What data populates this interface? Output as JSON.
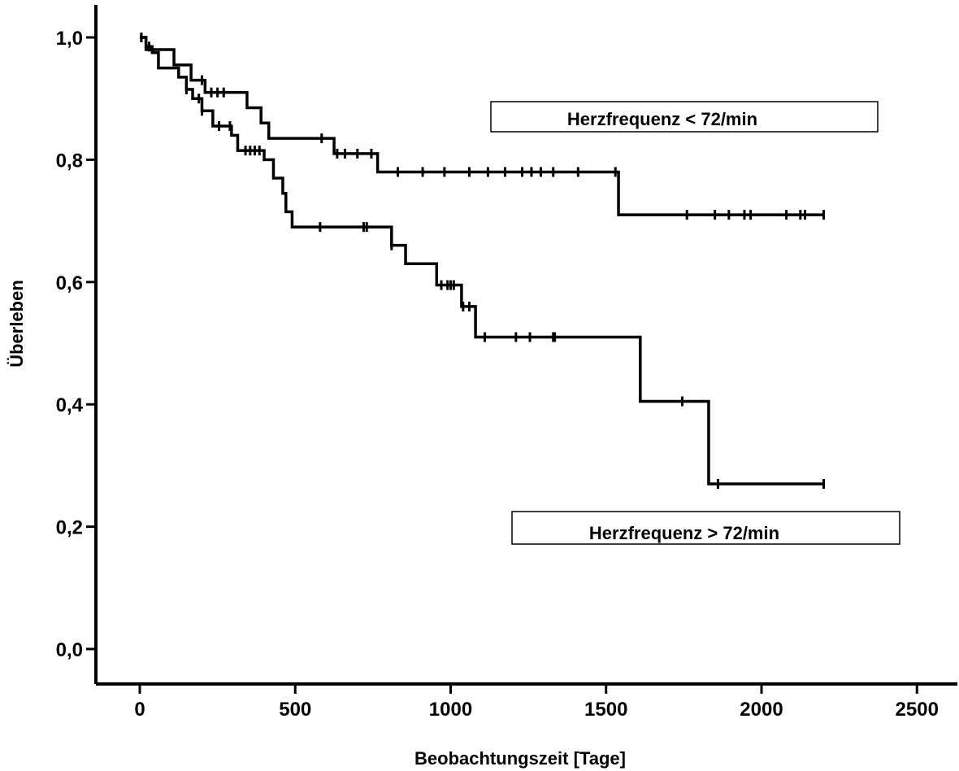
{
  "chart_data": {
    "type": "line",
    "subtype": "kaplan-meier step",
    "title": "",
    "xlabel": "Beobachtungszeit [Tage]",
    "ylabel": "Überleben",
    "xlim": [
      0,
      2500
    ],
    "ylim": [
      0,
      1.0
    ],
    "x_ticks": [
      0,
      500,
      1000,
      1500,
      2000,
      2500
    ],
    "x_tick_labels": [
      "0",
      "500",
      "1000",
      "1500",
      "2000",
      "2500"
    ],
    "y_ticks": [
      0,
      0.2,
      0.4,
      0.6,
      0.8,
      1.0
    ],
    "y_tick_labels": [
      "0,0",
      "0,2",
      "0,4",
      "0,6",
      "0,8",
      "1,0"
    ],
    "grid": false,
    "line_color": "#000000",
    "series": [
      {
        "name": "Herzfrequenz < 72/min",
        "steps": [
          [
            0,
            1.0
          ],
          [
            20,
            0.98
          ],
          [
            110,
            0.955
          ],
          [
            165,
            0.93
          ],
          [
            210,
            0.91
          ],
          [
            345,
            0.885
          ],
          [
            390,
            0.86
          ],
          [
            415,
            0.835
          ],
          [
            625,
            0.81
          ],
          [
            765,
            0.78
          ],
          [
            1540,
            0.71
          ],
          [
            2200,
            0.71
          ]
        ],
        "censored_x": [
          5,
          200,
          230,
          250,
          270,
          585,
          635,
          660,
          700,
          745,
          830,
          910,
          980,
          1060,
          1120,
          1175,
          1230,
          1260,
          1290,
          1330,
          1410,
          1530,
          1760,
          1850,
          1895,
          1945,
          1965,
          2080,
          2125,
          2140,
          2200
        ]
      },
      {
        "name": "Herzfrequenz > 72/min",
        "steps": [
          [
            0,
            1.0
          ],
          [
            20,
            0.985
          ],
          [
            40,
            0.975
          ],
          [
            60,
            0.95
          ],
          [
            125,
            0.935
          ],
          [
            150,
            0.915
          ],
          [
            170,
            0.9
          ],
          [
            200,
            0.88
          ],
          [
            235,
            0.855
          ],
          [
            295,
            0.84
          ],
          [
            315,
            0.815
          ],
          [
            400,
            0.8
          ],
          [
            430,
            0.77
          ],
          [
            460,
            0.745
          ],
          [
            470,
            0.715
          ],
          [
            490,
            0.69
          ],
          [
            810,
            0.66
          ],
          [
            855,
            0.63
          ],
          [
            955,
            0.595
          ],
          [
            1035,
            0.56
          ],
          [
            1080,
            0.51
          ],
          [
            1610,
            0.405
          ],
          [
            1830,
            0.27
          ],
          [
            2200,
            0.27
          ]
        ],
        "censored_x": [
          5,
          30,
          150,
          190,
          200,
          255,
          290,
          340,
          355,
          370,
          385,
          580,
          720,
          730,
          810,
          970,
          990,
          1000,
          1010,
          1040,
          1060,
          1110,
          1210,
          1255,
          1330,
          1335,
          1745,
          1860,
          2200
        ]
      }
    ],
    "legend": [
      {
        "text": "Herzfrequenz < 72/min",
        "placement": "upper-right, above upper curve"
      },
      {
        "text": "Herzfrequenz > 72/min",
        "placement": "lower-right, below lower curve"
      }
    ]
  }
}
